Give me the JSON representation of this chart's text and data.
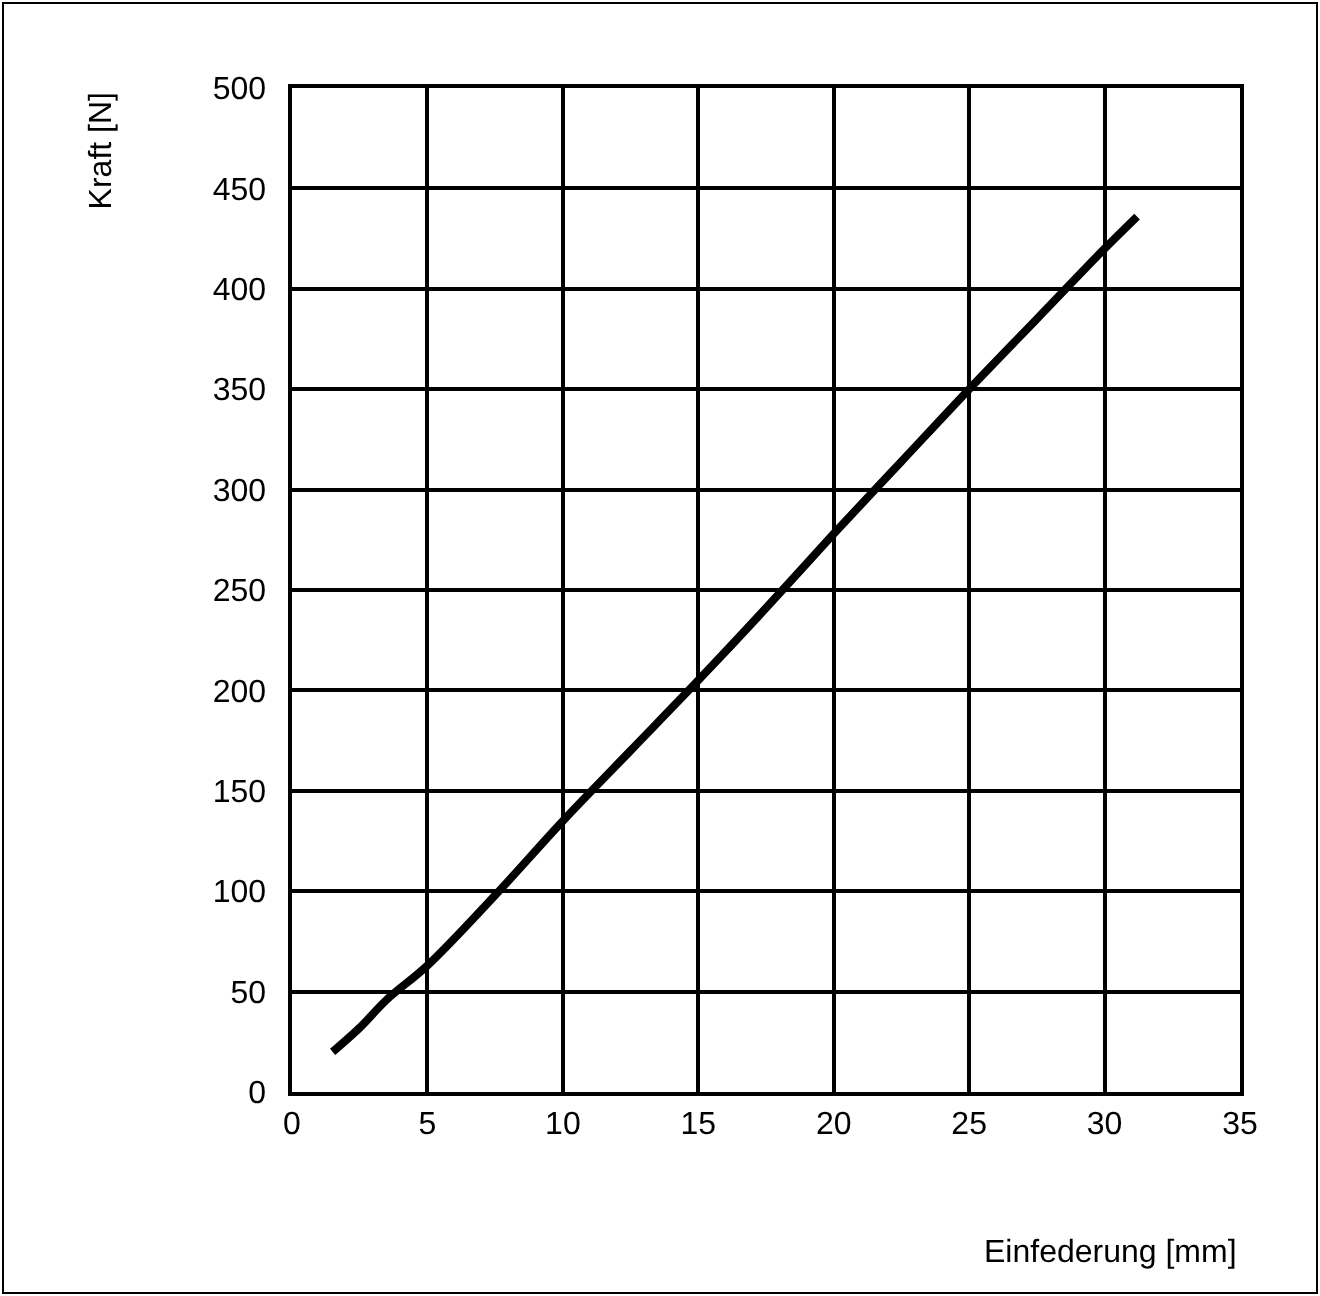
{
  "chart_data": {
    "type": "line",
    "xlabel": "Einfederung [mm]",
    "ylabel": "Kraft [N]",
    "x": [
      1.5,
      2.5,
      3.5,
      5,
      7.5,
      10,
      12.5,
      15,
      17.5,
      20,
      22.5,
      25,
      27.5,
      30,
      31.2
    ],
    "series": [
      {
        "color": "#000000",
        "values": [
          20,
          32,
          46,
          63,
          98,
          135,
          170,
          205,
          241,
          278,
          314,
          350,
          385,
          420,
          436
        ]
      }
    ],
    "xlim": [
      0,
      35
    ],
    "xticks": [
      0,
      5,
      10,
      15,
      20,
      25,
      30,
      35
    ],
    "ylim": [
      0,
      500
    ],
    "yticks": [
      0,
      50,
      100,
      150,
      200,
      250,
      300,
      350,
      400,
      450,
      500
    ],
    "grid": true,
    "legend": false,
    "marker": "none",
    "line_style": "solid"
  }
}
